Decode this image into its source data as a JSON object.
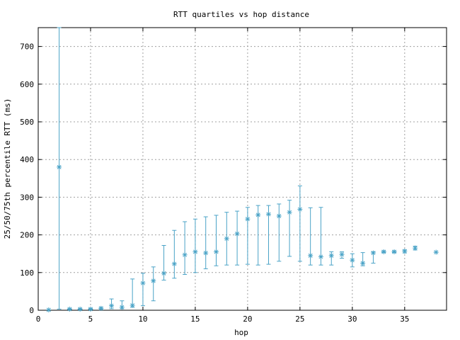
{
  "chart_data": {
    "type": "scatter",
    "title": "RTT quartiles vs hop distance",
    "xlabel": "hop",
    "ylabel": "25/50/75th percentile RTT (ms)",
    "xlim": [
      0,
      39
    ],
    "ylim": [
      0,
      750
    ],
    "xticks": [
      0,
      5,
      10,
      15,
      20,
      25,
      30,
      35
    ],
    "yticks": [
      0,
      100,
      200,
      300,
      400,
      500,
      600,
      700
    ],
    "grid": true,
    "color": "#4aa3c7",
    "series": [
      {
        "points": [
          {
            "x": 1,
            "median": 1,
            "low": 1,
            "high": 1
          },
          {
            "x": 2,
            "median": 380,
            "low": 3,
            "high": 750
          },
          {
            "x": 3,
            "median": 3,
            "low": 2,
            "high": 4
          },
          {
            "x": 4,
            "median": 3,
            "low": 2,
            "high": 4
          },
          {
            "x": 5,
            "median": 3,
            "low": 2,
            "high": 5
          },
          {
            "x": 6,
            "median": 5,
            "low": 3,
            "high": 8
          },
          {
            "x": 7,
            "median": 12,
            "low": 4,
            "high": 30
          },
          {
            "x": 8,
            "median": 8,
            "low": 4,
            "high": 25
          },
          {
            "x": 9,
            "median": 13,
            "low": 8,
            "high": 83
          },
          {
            "x": 10,
            "median": 72,
            "low": 12,
            "high": 98
          },
          {
            "x": 11,
            "median": 78,
            "low": 25,
            "high": 115
          },
          {
            "x": 12,
            "median": 98,
            "low": 80,
            "high": 172
          },
          {
            "x": 13,
            "median": 123,
            "low": 85,
            "high": 212
          },
          {
            "x": 14,
            "median": 147,
            "low": 95,
            "high": 235
          },
          {
            "x": 15,
            "median": 155,
            "low": 100,
            "high": 242
          },
          {
            "x": 16,
            "median": 152,
            "low": 110,
            "high": 248
          },
          {
            "x": 17,
            "median": 155,
            "low": 118,
            "high": 252
          },
          {
            "x": 18,
            "median": 190,
            "low": 120,
            "high": 260
          },
          {
            "x": 19,
            "median": 203,
            "low": 120,
            "high": 263
          },
          {
            "x": 20,
            "median": 242,
            "low": 122,
            "high": 273
          },
          {
            "x": 21,
            "median": 253,
            "low": 120,
            "high": 278
          },
          {
            "x": 22,
            "median": 255,
            "low": 122,
            "high": 278
          },
          {
            "x": 23,
            "median": 250,
            "low": 130,
            "high": 282
          },
          {
            "x": 24,
            "median": 260,
            "low": 143,
            "high": 292
          },
          {
            "x": 25,
            "median": 268,
            "low": 130,
            "high": 330
          },
          {
            "x": 26,
            "median": 145,
            "low": 120,
            "high": 272
          },
          {
            "x": 27,
            "median": 142,
            "low": 120,
            "high": 273
          },
          {
            "x": 28,
            "median": 145,
            "low": 120,
            "high": 155
          },
          {
            "x": 29,
            "median": 148,
            "low": 138,
            "high": 155
          },
          {
            "x": 30,
            "median": 133,
            "low": 115,
            "high": 150
          },
          {
            "x": 31,
            "median": 125,
            "low": 118,
            "high": 153
          },
          {
            "x": 32,
            "median": 152,
            "low": 125,
            "high": 155
          },
          {
            "x": 33,
            "median": 155,
            "low": 153,
            "high": 158
          },
          {
            "x": 34,
            "median": 155,
            "low": 153,
            "high": 158
          },
          {
            "x": 35,
            "median": 157,
            "low": 152,
            "high": 160
          },
          {
            "x": 36,
            "median": 165,
            "low": 160,
            "high": 170
          },
          {
            "x": 38,
            "median": 154,
            "low": 154,
            "high": 154
          }
        ]
      }
    ]
  }
}
